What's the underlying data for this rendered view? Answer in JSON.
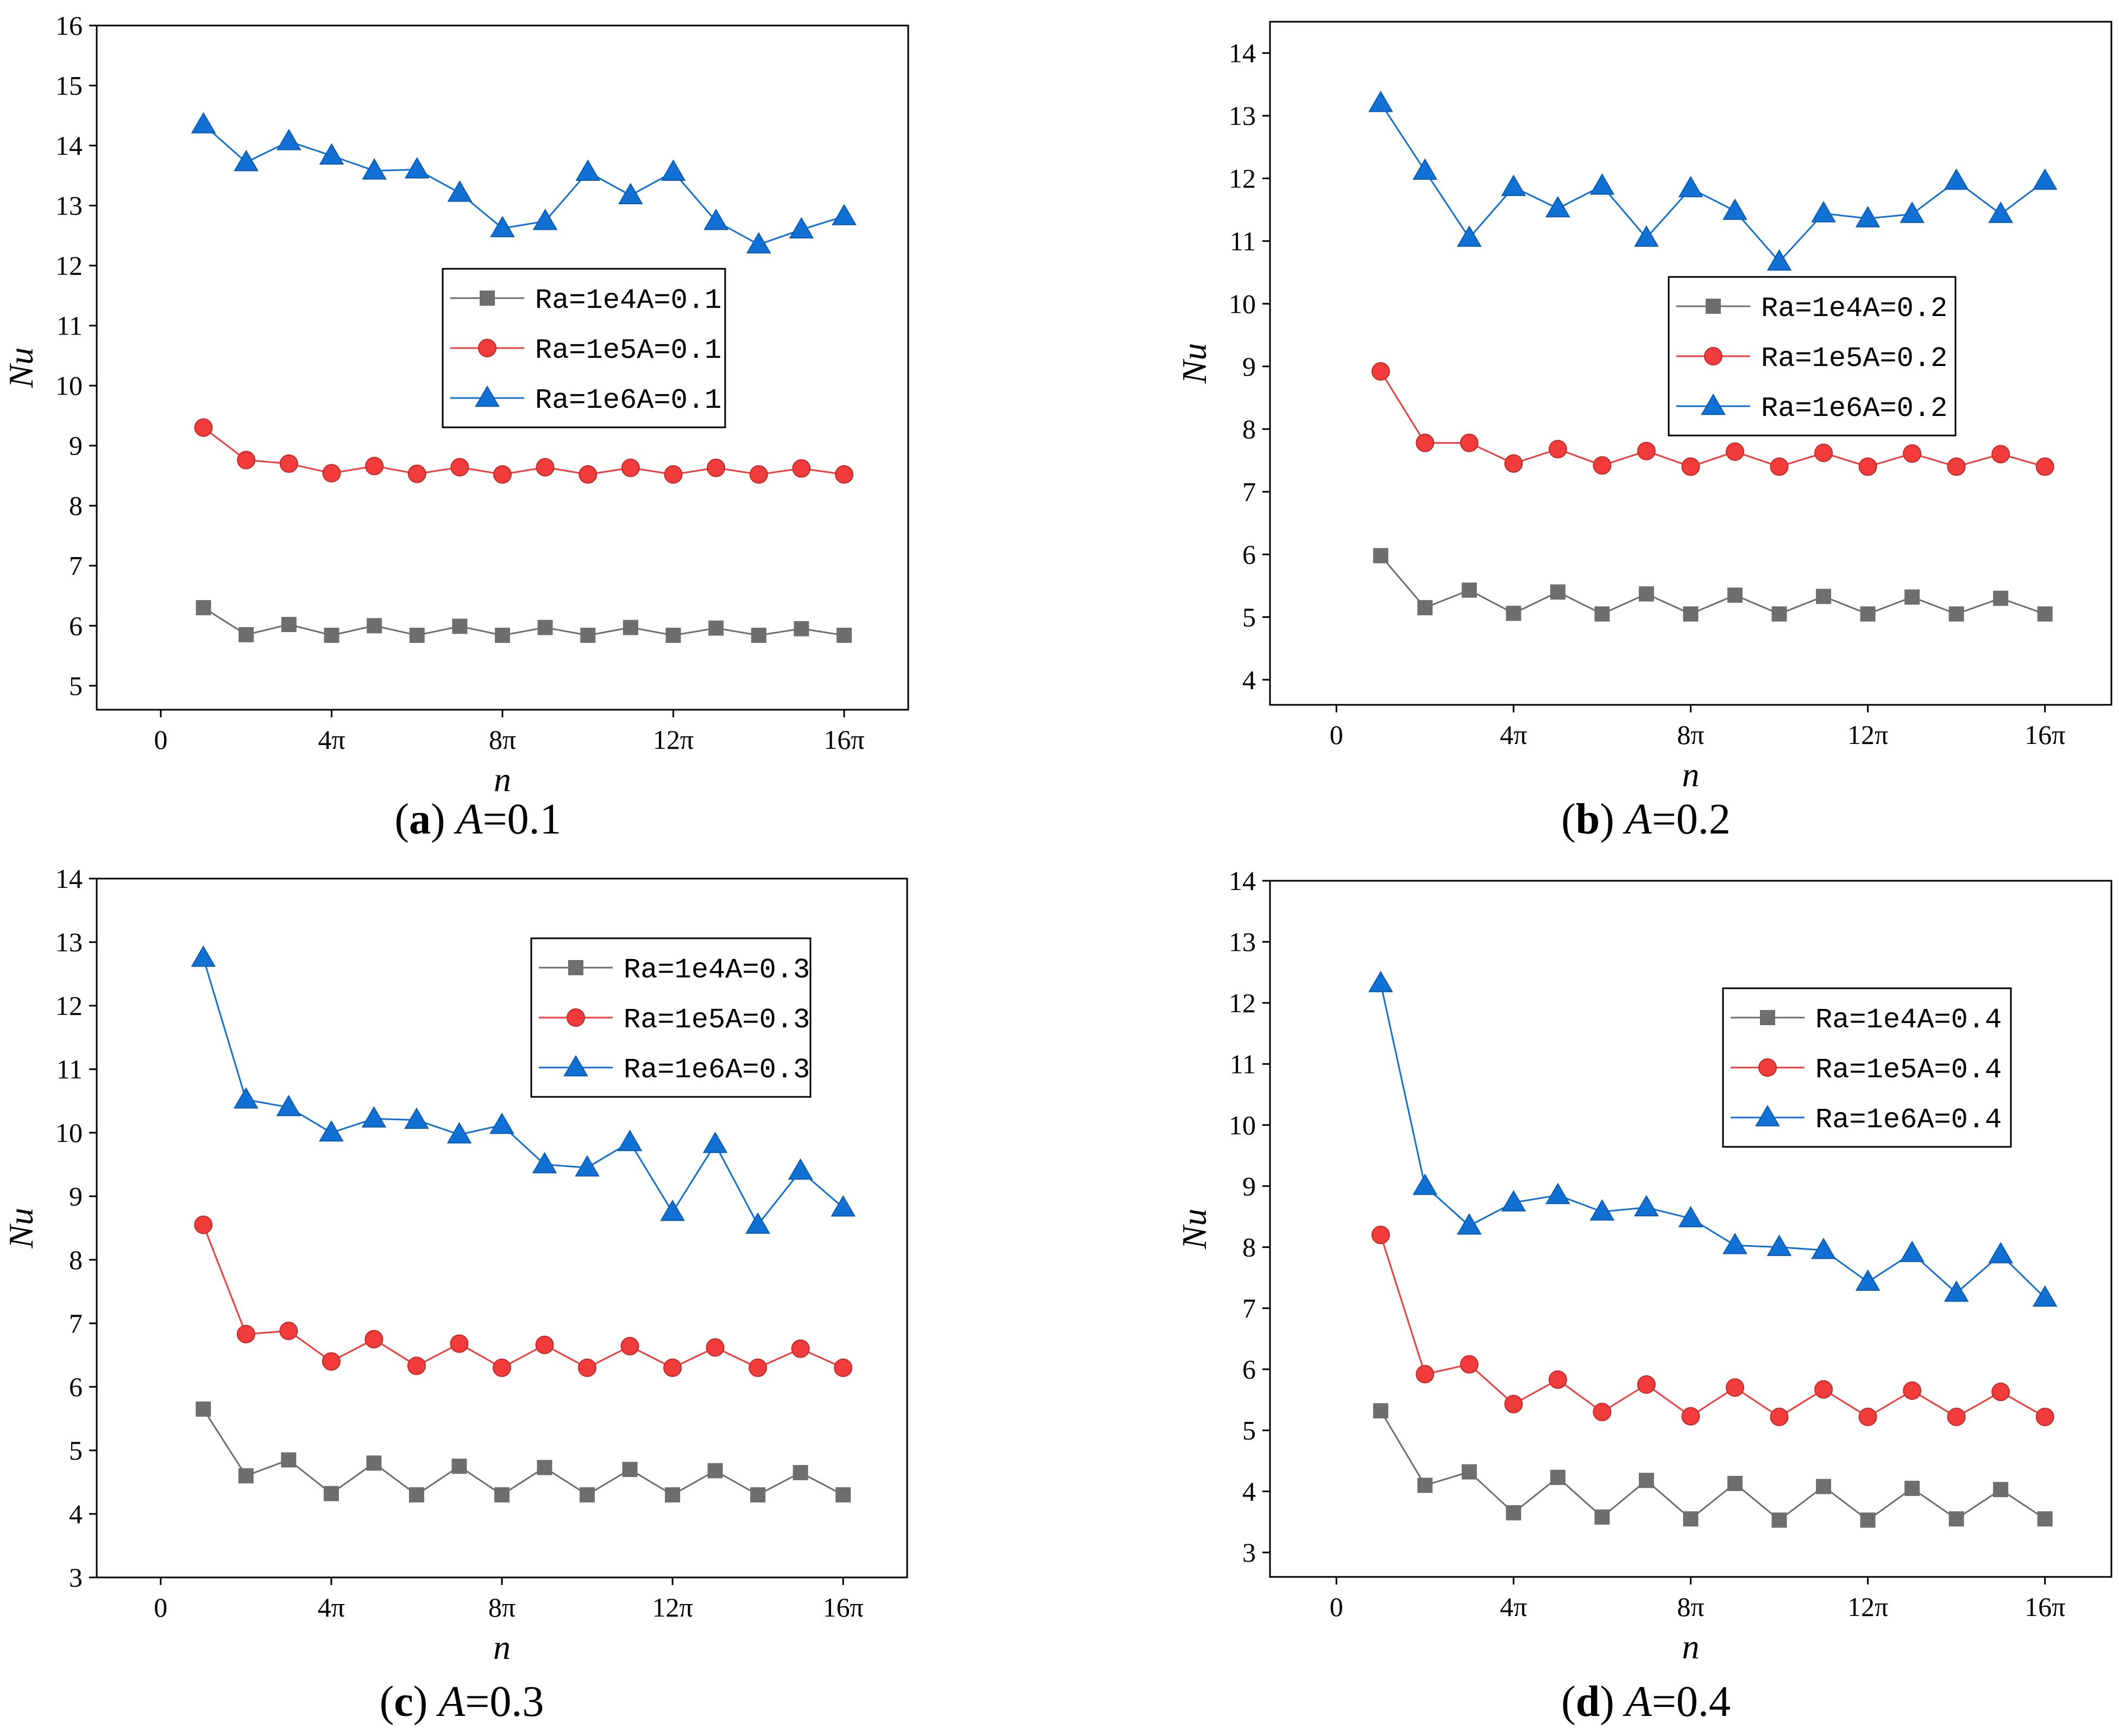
{
  "chart_data": [
    {
      "type": "line",
      "panel_letter": "a",
      "caption_param": "A",
      "caption_value": "=0.1",
      "xlabel": "n",
      "ylabel": "Nu",
      "xlim": [
        -1.5,
        17.5
      ],
      "ylim": [
        4.6,
        16
      ],
      "x_ticks": [
        0,
        4,
        8,
        12,
        16
      ],
      "x_tick_labels": [
        "0",
        "4π",
        "8π",
        "12π",
        "16π"
      ],
      "y_ticks": [
        5,
        6,
        7,
        8,
        9,
        10,
        11,
        12,
        13,
        14,
        15,
        16
      ],
      "y_tick_labels": [
        "5",
        "6",
        "7",
        "8",
        "9",
        "10",
        "11",
        "12",
        "13",
        "14",
        "15",
        "16"
      ],
      "legend_position": "center-right",
      "x": [
        1,
        2,
        3,
        4,
        5,
        6,
        7,
        8,
        9,
        10,
        11,
        12,
        13,
        14,
        15,
        16
      ],
      "series": [
        {
          "name": "Ra=1e4A=0.1",
          "marker": "square",
          "color": "#6e6e6e",
          "values": [
            6.3,
            5.85,
            6.02,
            5.84,
            6.0,
            5.84,
            5.99,
            5.84,
            5.97,
            5.84,
            5.97,
            5.84,
            5.96,
            5.84,
            5.95,
            5.84
          ]
        },
        {
          "name": "Ra=1e5A=0.1",
          "marker": "circle",
          "color": "#f23c3c",
          "values": [
            9.3,
            8.76,
            8.7,
            8.54,
            8.66,
            8.53,
            8.64,
            8.52,
            8.64,
            8.52,
            8.63,
            8.52,
            8.63,
            8.52,
            8.62,
            8.52
          ]
        },
        {
          "name": "Ra=1e6A=0.1",
          "marker": "triangle",
          "color": "#1170d4",
          "values": [
            14.35,
            13.72,
            14.07,
            13.83,
            13.58,
            13.6,
            13.21,
            12.62,
            12.74,
            13.56,
            13.17,
            13.56,
            12.74,
            12.35,
            12.6,
            12.82
          ]
        }
      ]
    },
    {
      "type": "line",
      "panel_letter": "b",
      "caption_param": "A",
      "caption_value": "=0.2",
      "xlabel": "n",
      "ylabel": "Nu",
      "xlim": [
        -1.5,
        17.5
      ],
      "ylim": [
        3.6,
        14.5
      ],
      "x_ticks": [
        0,
        4,
        8,
        12,
        16
      ],
      "x_tick_labels": [
        "0",
        "4π",
        "8π",
        "12π",
        "16π"
      ],
      "y_ticks": [
        4,
        5,
        6,
        7,
        8,
        9,
        10,
        11,
        12,
        13,
        14
      ],
      "y_tick_labels": [
        "4",
        "5",
        "6",
        "7",
        "8",
        "9",
        "10",
        "11",
        "12",
        "13",
        "14"
      ],
      "legend_position": "center-right",
      "x": [
        1,
        2,
        3,
        4,
        5,
        6,
        7,
        8,
        9,
        10,
        11,
        12,
        13,
        14,
        15,
        16
      ],
      "series": [
        {
          "name": "Ra=1e4A=0.2",
          "marker": "square",
          "color": "#6e6e6e",
          "values": [
            5.98,
            5.15,
            5.43,
            5.06,
            5.4,
            5.05,
            5.37,
            5.05,
            5.35,
            5.05,
            5.33,
            5.05,
            5.32,
            5.05,
            5.3,
            5.05
          ]
        },
        {
          "name": "Ra=1e5A=0.2",
          "marker": "circle",
          "color": "#f23c3c",
          "values": [
            8.92,
            7.78,
            7.78,
            7.45,
            7.68,
            7.42,
            7.65,
            7.4,
            7.64,
            7.4,
            7.62,
            7.4,
            7.61,
            7.4,
            7.6,
            7.4
          ]
        },
        {
          "name": "Ra=1e6A=0.2",
          "marker": "triangle",
          "color": "#1170d4",
          "values": [
            13.2,
            12.12,
            11.05,
            11.86,
            11.52,
            11.88,
            11.05,
            11.84,
            11.48,
            10.67,
            11.44,
            11.36,
            11.43,
            11.96,
            11.43,
            11.96
          ]
        }
      ]
    },
    {
      "type": "line",
      "panel_letter": "c",
      "caption_param": "A",
      "caption_value": "=0.3",
      "xlabel": "n",
      "ylabel": "Nu",
      "xlim": [
        -1.5,
        17.5
      ],
      "ylim": [
        3,
        14
      ],
      "x_ticks": [
        0,
        4,
        8,
        12,
        16
      ],
      "x_tick_labels": [
        "0",
        "4π",
        "8π",
        "12π",
        "16π"
      ],
      "y_ticks": [
        3,
        4,
        5,
        6,
        7,
        8,
        9,
        10,
        11,
        12,
        13,
        14
      ],
      "y_tick_labels": [
        "3",
        "4",
        "5",
        "6",
        "7",
        "8",
        "9",
        "10",
        "11",
        "12",
        "13",
        "14"
      ],
      "legend_position": "top-right",
      "x": [
        1,
        2,
        3,
        4,
        5,
        6,
        7,
        8,
        9,
        10,
        11,
        12,
        13,
        14,
        15,
        16
      ],
      "series": [
        {
          "name": "Ra=1e4A=0.3",
          "marker": "square",
          "color": "#6e6e6e",
          "values": [
            5.65,
            4.6,
            4.85,
            4.32,
            4.8,
            4.3,
            4.75,
            4.3,
            4.73,
            4.3,
            4.7,
            4.3,
            4.68,
            4.3,
            4.65,
            4.3
          ]
        },
        {
          "name": "Ra=1e5A=0.3",
          "marker": "circle",
          "color": "#f23c3c",
          "values": [
            8.55,
            6.83,
            6.88,
            6.4,
            6.75,
            6.33,
            6.68,
            6.3,
            6.66,
            6.3,
            6.64,
            6.3,
            6.62,
            6.3,
            6.6,
            6.3
          ]
        },
        {
          "name": "Ra=1e6A=0.3",
          "marker": "triangle",
          "color": "#1170d4",
          "values": [
            12.75,
            10.52,
            10.4,
            10.0,
            10.22,
            10.2,
            9.97,
            10.12,
            9.5,
            9.45,
            9.85,
            8.75,
            9.82,
            8.55,
            9.4,
            8.82
          ]
        }
      ]
    },
    {
      "type": "line",
      "panel_letter": "d",
      "caption_param": "A",
      "caption_value": "=0.4",
      "xlabel": "n",
      "ylabel": "Nu",
      "xlim": [
        -1.5,
        17.5
      ],
      "ylim": [
        2.6,
        14
      ],
      "x_ticks": [
        0,
        4,
        8,
        12,
        16
      ],
      "x_tick_labels": [
        "0",
        "4π",
        "8π",
        "12π",
        "16π"
      ],
      "y_ticks": [
        3,
        4,
        5,
        6,
        7,
        8,
        9,
        10,
        11,
        12,
        13,
        14
      ],
      "y_tick_labels": [
        "3",
        "4",
        "5",
        "6",
        "7",
        "8",
        "9",
        "10",
        "11",
        "12",
        "13",
        "14"
      ],
      "legend_position": "top-right",
      "x": [
        1,
        2,
        3,
        4,
        5,
        6,
        7,
        8,
        9,
        10,
        11,
        12,
        13,
        14,
        15,
        16
      ],
      "series": [
        {
          "name": "Ra=1e4A=0.4",
          "marker": "square",
          "color": "#6e6e6e",
          "values": [
            5.32,
            4.1,
            4.32,
            3.65,
            4.23,
            3.58,
            4.18,
            3.55,
            4.13,
            3.53,
            4.08,
            3.53,
            4.05,
            3.55,
            4.03,
            3.55
          ]
        },
        {
          "name": "Ra=1e5A=0.4",
          "marker": "circle",
          "color": "#f23c3c",
          "values": [
            8.2,
            5.92,
            6.08,
            5.43,
            5.83,
            5.3,
            5.75,
            5.23,
            5.7,
            5.22,
            5.67,
            5.22,
            5.65,
            5.22,
            5.63,
            5.22
          ]
        },
        {
          "name": "Ra=1e6A=0.4",
          "marker": "triangle",
          "color": "#1170d4",
          "values": [
            12.32,
            9.0,
            8.35,
            8.73,
            8.85,
            8.58,
            8.65,
            8.47,
            8.03,
            8.0,
            7.95,
            7.43,
            7.9,
            7.25,
            7.88,
            7.17
          ]
        }
      ]
    }
  ]
}
